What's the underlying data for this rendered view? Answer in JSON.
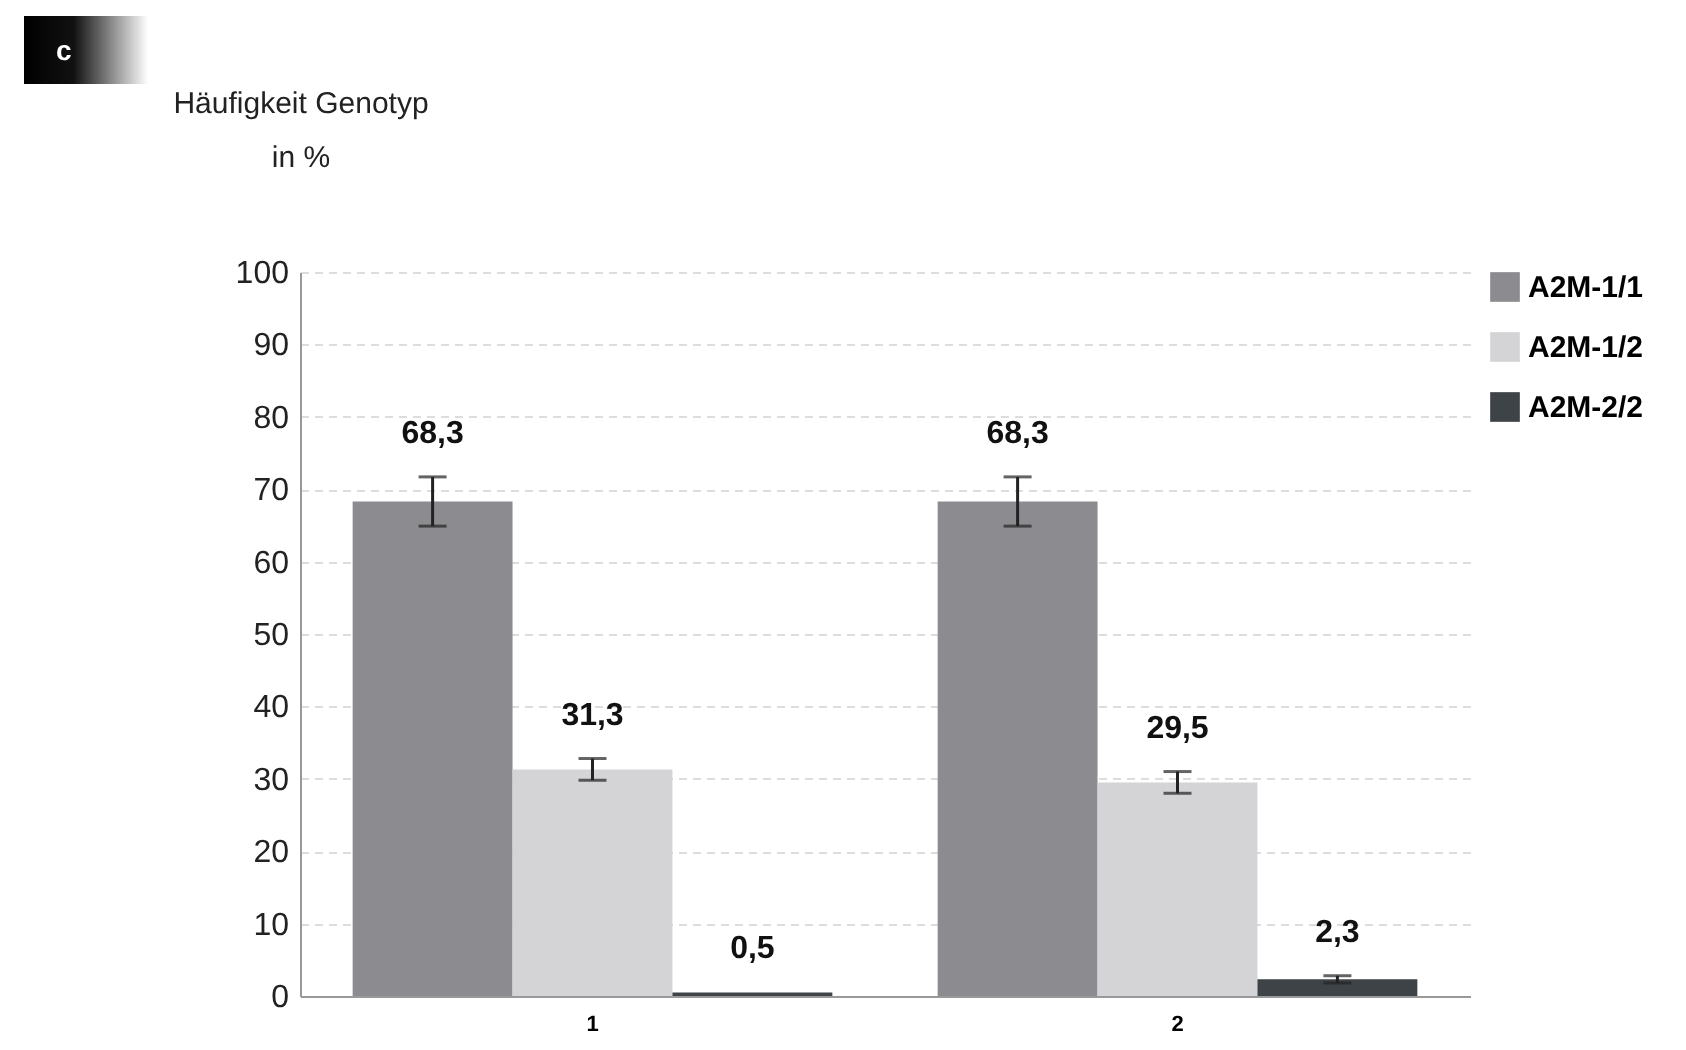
{
  "chart_data": {
    "type": "bar",
    "ylabel": "Häufigkeit Genotyp\nin %",
    "annotations": [
      "c"
    ],
    "categories": [
      "1",
      "2"
    ],
    "series": [
      {
        "name": "A2M-1/1",
        "color": "#8c8c90",
        "values": [
          68.3,
          68.3
        ],
        "errors": [
          3.4,
          3.4
        ],
        "value_labels": [
          "68,3",
          "68,3"
        ]
      },
      {
        "name": "A2M-1/2",
        "color": "#d4d4d6",
        "values": [
          31.3,
          29.5
        ],
        "errors": [
          1.5,
          1.5
        ],
        "value_labels": [
          "31,3",
          "29,5"
        ]
      },
      {
        "name": "A2M-2/2",
        "color": "#3e4347",
        "values": [
          0.5,
          2.3
        ],
        "errors": [
          null,
          0.5
        ],
        "value_labels": [
          "0,5",
          "2,3"
        ]
      }
    ],
    "ylim": [
      0,
      100
    ],
    "yticks": [
      0,
      10,
      20,
      30,
      40,
      50,
      60,
      70,
      80,
      90,
      100
    ],
    "grid": "y",
    "legend": "right"
  }
}
